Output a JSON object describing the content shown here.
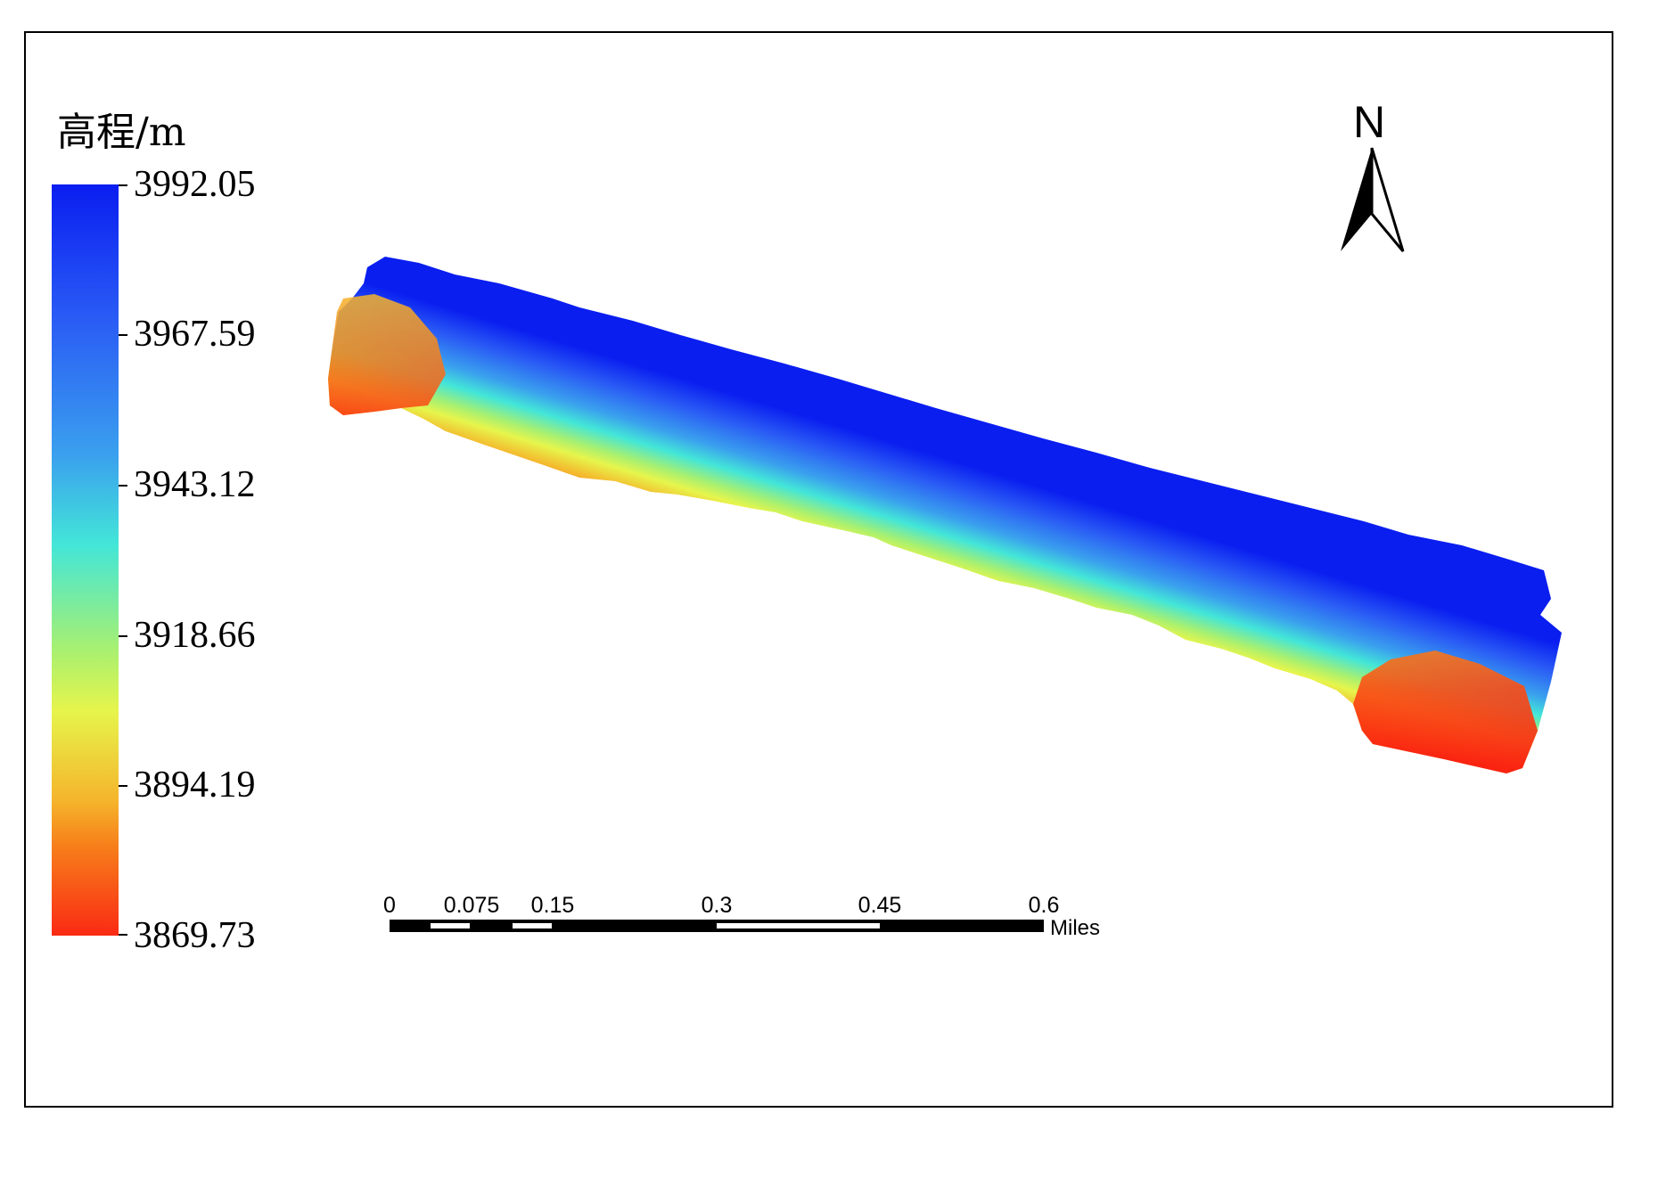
{
  "legend": {
    "title": "高程/m",
    "labels": [
      "3992.05",
      "3967.59",
      "3943.12",
      "3918.66",
      "3894.19",
      "3869.73"
    ],
    "colors": [
      "#0a1ef0",
      "#3aa0ee",
      "#43e6d8",
      "#e6f54c",
      "#f77f1a",
      "#fa2a14"
    ]
  },
  "north_arrow": {
    "label": "N"
  },
  "scale_bar": {
    "ticks": [
      "0",
      "0.075",
      "0.15",
      "0.3",
      "0.45",
      "0.6"
    ],
    "unit": "Miles"
  }
}
